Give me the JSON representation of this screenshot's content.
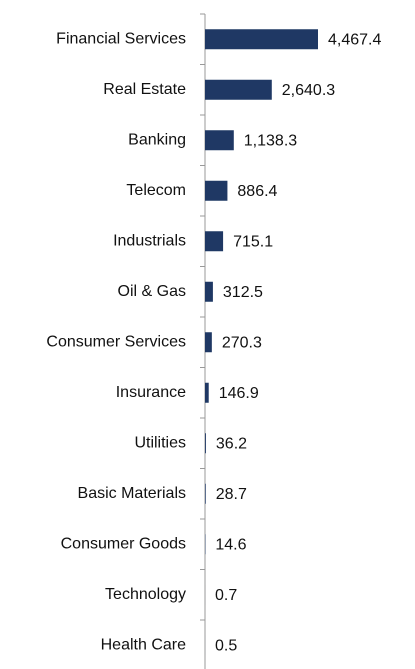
{
  "chart_data": {
    "type": "bar",
    "orientation": "horizontal",
    "categories": [
      "Financial Services",
      "Real Estate",
      "Banking",
      "Telecom",
      "Industrials",
      "Oil & Gas",
      "Consumer Services",
      "Insurance",
      "Utilities",
      "Basic Materials",
      "Consumer Goods",
      "Technology",
      "Health Care"
    ],
    "values": [
      4467.4,
      2640.3,
      1138.3,
      886.4,
      715.1,
      312.5,
      270.3,
      146.9,
      36.2,
      28.7,
      14.6,
      0.7,
      0.5
    ],
    "value_labels": [
      "4,467.4",
      "2,640.3",
      "1,138.3",
      "886.4",
      "715.1",
      "312.5",
      "270.3",
      "146.9",
      "36.2",
      "28.7",
      "14.6",
      "0.7",
      "0.5"
    ],
    "color": "#1f3864"
  }
}
